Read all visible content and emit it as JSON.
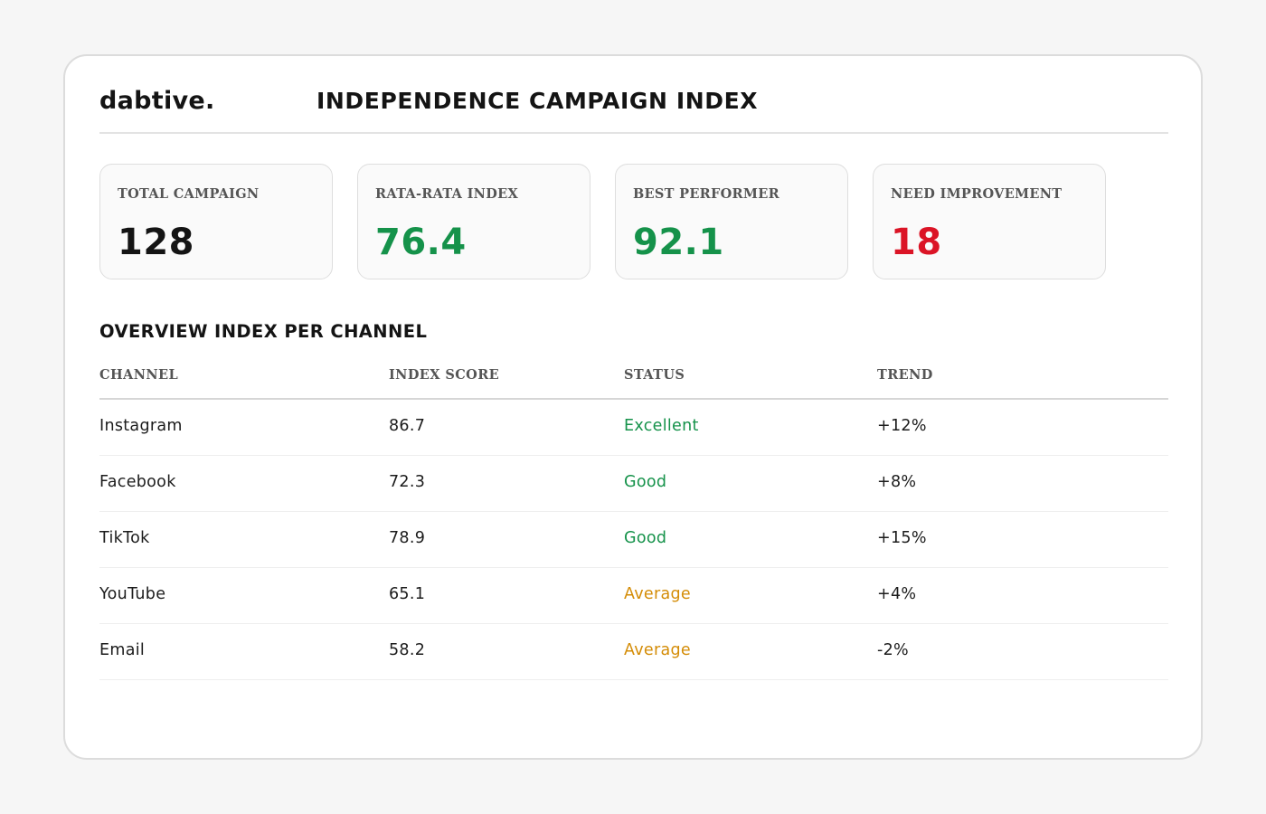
{
  "brand": {
    "logo": "dabtive."
  },
  "header": {
    "title": "INDEPENDENCE CAMPAIGN INDEX"
  },
  "colors": {
    "positive": "#15924a",
    "negative": "#db1426",
    "neutral": "#141414",
    "average": "#d48c06"
  },
  "stats": [
    {
      "label": "TOTAL CAMPAIGN",
      "value": "128",
      "color": "#141414"
    },
    {
      "label": "RATA-RATA INDEX",
      "value": "76.4",
      "color": "#15924a"
    },
    {
      "label": "BEST PERFORMER",
      "value": "92.1",
      "color": "#15924a"
    },
    {
      "label": "NEED IMPROVEMENT",
      "value": "18",
      "color": "#db1426"
    }
  ],
  "overview": {
    "title": "OVERVIEW INDEX PER CHANNEL",
    "columns": [
      "CHANNEL",
      "INDEX SCORE",
      "STATUS",
      "TREND"
    ],
    "rows": [
      {
        "channel": "Instagram",
        "score": "86.7",
        "status": "Excellent",
        "status_color": "#15924a",
        "trend": "+12%"
      },
      {
        "channel": "Facebook",
        "score": "72.3",
        "status": "Good",
        "status_color": "#15924a",
        "trend": "+8%"
      },
      {
        "channel": "TikTok",
        "score": "78.9",
        "status": "Good",
        "status_color": "#15924a",
        "trend": "+15%"
      },
      {
        "channel": "YouTube",
        "score": "65.1",
        "status": "Average",
        "status_color": "#d48c06",
        "trend": "+4%"
      },
      {
        "channel": "Email",
        "score": "58.2",
        "status": "Average",
        "status_color": "#d48c06",
        "trend": "-2%"
      }
    ]
  }
}
